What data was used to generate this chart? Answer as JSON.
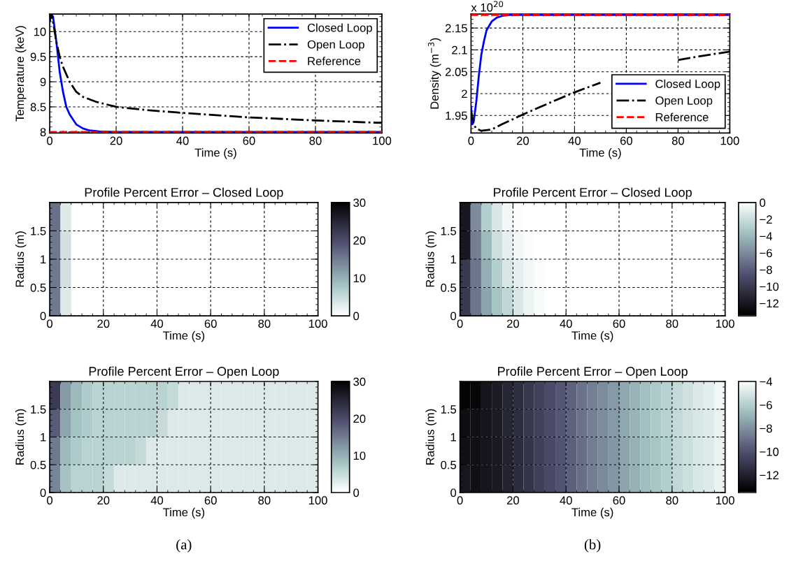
{
  "chart_data": [
    {
      "type": "line",
      "xlabel": "Time (s)",
      "ylabel": "Temperature (keV)",
      "xlim": [
        0,
        100
      ],
      "xticks": [
        0,
        20,
        40,
        60,
        80,
        100
      ],
      "ylim": [
        7.98,
        10.35
      ],
      "yticks": [
        8,
        8.5,
        9,
        9.5,
        10
      ],
      "grid": true,
      "legend": "top right",
      "series": [
        {
          "name": "Closed Loop",
          "color": "#0000ff",
          "line_style": "solid",
          "x": [
            0,
            0.5,
            1,
            2,
            3,
            4,
            5,
            6,
            8,
            10,
            12,
            15,
            20,
            100
          ],
          "values": [
            10.2,
            10.35,
            10.3,
            9.8,
            9.2,
            8.8,
            8.5,
            8.35,
            8.15,
            8.07,
            8.03,
            8.01,
            8.0,
            8.0
          ]
        },
        {
          "name": "Open Loop",
          "color": "#000000",
          "line_style": "dashdot",
          "x": [
            0,
            0.5,
            1,
            2,
            3,
            4,
            6,
            8,
            10,
            14,
            20,
            30,
            40,
            60,
            80,
            100
          ],
          "values": [
            10.2,
            10.35,
            10.2,
            9.8,
            9.5,
            9.3,
            9.0,
            8.8,
            8.7,
            8.6,
            8.5,
            8.43,
            8.38,
            8.29,
            8.23,
            8.18
          ]
        },
        {
          "name": "Reference",
          "color": "#ff0000",
          "line_style": "dashed",
          "x": [
            0,
            100
          ],
          "values": [
            8.0,
            8.0
          ]
        }
      ]
    },
    {
      "type": "line",
      "xlabel": "Time (s)",
      "ylabel": "Density (m$^{−3}$)",
      "annotations": [
        "x 10$^{20}$"
      ],
      "xlim": [
        0,
        100
      ],
      "xticks": [
        0,
        20,
        40,
        60,
        80,
        100
      ],
      "ylim": [
        1.91,
        2.182
      ],
      "yticks": [
        1.95,
        2,
        2.05,
        2.1,
        2.15
      ],
      "grid": true,
      "legend": "bottom right",
      "series": [
        {
          "name": "Closed Loop",
          "color": "#0000ff",
          "line_style": "solid",
          "x": [
            0,
            0.5,
            1,
            2,
            3,
            4,
            5,
            6,
            8,
            10,
            12,
            15,
            100
          ],
          "values": [
            1.97,
            1.93,
            1.935,
            1.98,
            2.04,
            2.09,
            2.12,
            2.145,
            2.165,
            2.174,
            2.178,
            2.18,
            2.18
          ]
        },
        {
          "name": "Open Loop",
          "color": "#000000",
          "line_style": "dashdot",
          "x": [
            0,
            1,
            2,
            4,
            8,
            12,
            20,
            30,
            40,
            50,
            60,
            70,
            80,
            90,
            100
          ],
          "values": [
            1.96,
            1.93,
            1.92,
            1.915,
            1.918,
            1.93,
            1.952,
            1.978,
            2.003,
            2.025,
            null,
            null,
            2.077,
            2.087,
            2.096
          ]
        },
        {
          "name": "Reference",
          "color": "#ff0000",
          "line_style": "dashed",
          "x": [
            0,
            100
          ],
          "values": [
            2.18,
            2.18
          ]
        }
      ]
    },
    {
      "type": "heatmap",
      "title": "Profile Percent Error – Closed Loop",
      "xlabel": "Time (s)",
      "ylabel": "Radius (m)",
      "xlim": [
        0,
        100
      ],
      "xticks": [
        0,
        20,
        40,
        60,
        80,
        100
      ],
      "ylim": [
        0,
        2
      ],
      "yticks": [
        0,
        0.5,
        1,
        1.5
      ],
      "grid": true,
      "clim": [
        0,
        30
      ],
      "cticks": [
        0,
        10,
        20,
        30
      ],
      "x": [
        2,
        6,
        10,
        14,
        18,
        22,
        26,
        30,
        34,
        38,
        42,
        46,
        50,
        54,
        58,
        62,
        66,
        70,
        74,
        78,
        82,
        86,
        90,
        94,
        98
      ],
      "y": [
        1.75,
        1.25,
        0.75,
        0.25
      ],
      "cells": [
        [
          16,
          3,
          0,
          0,
          0,
          0,
          0,
          0,
          0,
          0,
          0,
          0,
          0,
          0,
          0,
          0,
          0,
          0,
          0,
          0,
          0,
          0,
          0,
          0,
          0
        ],
        [
          15,
          4,
          0,
          0,
          0,
          0,
          0,
          0,
          0,
          0,
          0,
          0,
          0,
          0,
          0,
          0,
          0,
          0,
          0,
          0,
          0,
          0,
          0,
          0,
          0
        ],
        [
          15,
          4,
          0,
          0,
          0,
          0,
          0,
          0,
          0,
          0,
          0,
          0,
          0,
          0,
          0,
          0,
          0,
          0,
          0,
          0,
          0,
          0,
          0,
          0,
          0
        ],
        [
          15,
          3,
          0,
          0,
          0,
          0,
          0,
          0,
          0,
          0,
          0,
          0,
          0,
          0,
          0,
          0,
          0,
          0,
          0,
          0,
          0,
          0,
          0,
          0,
          0
        ]
      ]
    },
    {
      "type": "heatmap",
      "title": "Profile Percent Error – Closed Loop",
      "xlabel": "Time (s)",
      "ylabel": "Radius (m)",
      "xlim": [
        0,
        100
      ],
      "xticks": [
        0,
        20,
        40,
        60,
        80,
        100
      ],
      "ylim": [
        0,
        2
      ],
      "yticks": [
        0,
        0.5,
        1,
        1.5
      ],
      "grid": true,
      "clim": [
        -13.5,
        0
      ],
      "cticks": [
        -12,
        -10,
        -8,
        -6,
        -4,
        -2,
        0
      ],
      "x": [
        2,
        6,
        10,
        14,
        18,
        22,
        26,
        30,
        34,
        38,
        42,
        46,
        50,
        54,
        58,
        62,
        66,
        70,
        74,
        78,
        82,
        86,
        90,
        94,
        98
      ],
      "y": [
        1.75,
        1.25,
        0.75,
        0.25
      ],
      "cells": [
        [
          -12,
          -6,
          -3,
          -1.5,
          -0.5,
          -0.2,
          0,
          0,
          0,
          0,
          0,
          0,
          0,
          0,
          0,
          0,
          0,
          0,
          0,
          0,
          0,
          0,
          0,
          0,
          0
        ],
        [
          -12,
          -6.5,
          -4,
          -2,
          -1,
          -0.5,
          -0.2,
          0,
          0,
          0,
          0,
          0,
          0,
          0,
          0,
          0,
          0,
          0,
          0,
          0,
          0,
          0,
          0,
          0,
          0
        ],
        [
          -10,
          -7,
          -4.5,
          -3,
          -1.5,
          -1,
          -0.5,
          -0.2,
          0,
          0,
          0,
          0,
          0,
          0,
          0,
          0,
          0,
          0,
          0,
          0,
          0,
          0,
          0,
          0,
          0
        ],
        [
          -10,
          -7,
          -5,
          -3.5,
          -2.5,
          -1.5,
          -0.7,
          -0.3,
          0,
          0,
          0,
          0,
          0,
          0,
          0,
          0,
          0,
          0,
          0,
          0,
          0,
          0,
          0,
          0,
          0
        ]
      ]
    },
    {
      "type": "heatmap",
      "title": "Profile Percent Error – Open Loop",
      "xlabel": "Time (s)",
      "ylabel": "Radius (m)",
      "annotations": [
        "(a)"
      ],
      "xlim": [
        0,
        100
      ],
      "xticks": [
        0,
        20,
        40,
        60,
        80,
        100
      ],
      "ylim": [
        0,
        2
      ],
      "yticks": [
        0,
        0.5,
        1,
        1.5
      ],
      "grid": true,
      "clim": [
        0,
        30
      ],
      "cticks": [
        0,
        10,
        20,
        30
      ],
      "x": [
        2,
        6,
        10,
        14,
        18,
        22,
        26,
        30,
        34,
        38,
        42,
        46,
        50,
        54,
        58,
        62,
        66,
        70,
        74,
        78,
        82,
        86,
        90,
        94,
        98
      ],
      "y": [
        1.75,
        1.25,
        0.75,
        0.25
      ],
      "cells": [
        [
          22,
          12,
          9,
          7,
          6,
          6,
          6,
          6,
          6,
          6,
          6,
          5,
          3,
          3,
          3,
          3,
          3,
          3,
          3,
          3,
          3,
          3,
          3,
          3,
          3
        ],
        [
          18,
          11,
          8,
          7,
          6,
          6,
          6,
          6,
          6,
          6,
          5,
          3,
          3,
          3,
          3,
          3,
          3,
          3,
          3,
          3,
          3,
          3,
          3,
          3,
          3
        ],
        [
          15,
          9,
          7,
          6,
          6,
          6,
          6,
          6,
          5,
          3,
          3,
          3,
          3,
          3,
          3,
          3,
          3,
          3,
          3,
          3,
          3,
          3,
          3,
          3,
          3
        ],
        [
          14,
          8,
          6,
          6,
          6,
          5,
          3,
          3,
          3,
          3,
          3,
          3,
          3,
          3,
          3,
          3,
          3,
          3,
          3,
          3,
          3,
          3,
          3,
          3,
          3
        ]
      ]
    },
    {
      "type": "heatmap",
      "title": "Profile Percent Error – Open Loop",
      "xlabel": "Time (s)",
      "ylabel": "Radius (m)",
      "annotations": [
        "(b)"
      ],
      "xlim": [
        0,
        100
      ],
      "xticks": [
        0,
        20,
        40,
        60,
        80,
        100
      ],
      "ylim": [
        0,
        2
      ],
      "yticks": [
        0,
        0.5,
        1,
        1.5
      ],
      "grid": true,
      "clim": [
        -13.5,
        -4
      ],
      "cticks": [
        -12,
        -10,
        -8,
        -6,
        -4
      ],
      "x": [
        2,
        6,
        10,
        14,
        18,
        22,
        26,
        30,
        34,
        38,
        42,
        46,
        50,
        54,
        58,
        62,
        66,
        70,
        74,
        78,
        82,
        86,
        90,
        94,
        98
      ],
      "y": [
        1.75,
        1.25,
        0.75,
        0.25
      ],
      "cells": [
        [
          -13.3,
          -13.2,
          -12.6,
          -12.3,
          -11.9,
          -11.5,
          -11.1,
          -10.7,
          -10.3,
          -9.9,
          -9.5,
          -9.0,
          -8.6,
          -8.2,
          -7.8,
          -7.4,
          -7.0,
          -6.6,
          -6.3,
          -6.0,
          -5.6,
          -5.3,
          -5.0,
          -4.8,
          -4.4
        ],
        [
          -12.9,
          -12.8,
          -12.6,
          -12.3,
          -11.9,
          -11.5,
          -11.1,
          -10.7,
          -10.3,
          -9.9,
          -9.5,
          -9.0,
          -8.6,
          -8.2,
          -7.8,
          -7.4,
          -7.0,
          -6.6,
          -6.3,
          -6.0,
          -5.6,
          -5.3,
          -5.1,
          -4.9,
          -4.6
        ],
        [
          -12.8,
          -12.8,
          -12.6,
          -12.4,
          -12.0,
          -11.6,
          -11.2,
          -10.8,
          -10.4,
          -10.0,
          -9.6,
          -9.1,
          -8.7,
          -8.3,
          -7.9,
          -7.5,
          -7.1,
          -6.7,
          -6.4,
          -6.1,
          -5.7,
          -5.4,
          -5.1,
          -4.9,
          -4.6
        ],
        [
          -12.5,
          -12.8,
          -12.6,
          -12.4,
          -12.0,
          -11.6,
          -11.2,
          -10.8,
          -10.4,
          -10.0,
          -9.6,
          -9.1,
          -8.7,
          -8.3,
          -7.9,
          -7.5,
          -7.1,
          -6.7,
          -6.4,
          -6.1,
          -5.7,
          -5.4,
          -5.1,
          -4.9,
          -4.6
        ]
      ]
    }
  ]
}
